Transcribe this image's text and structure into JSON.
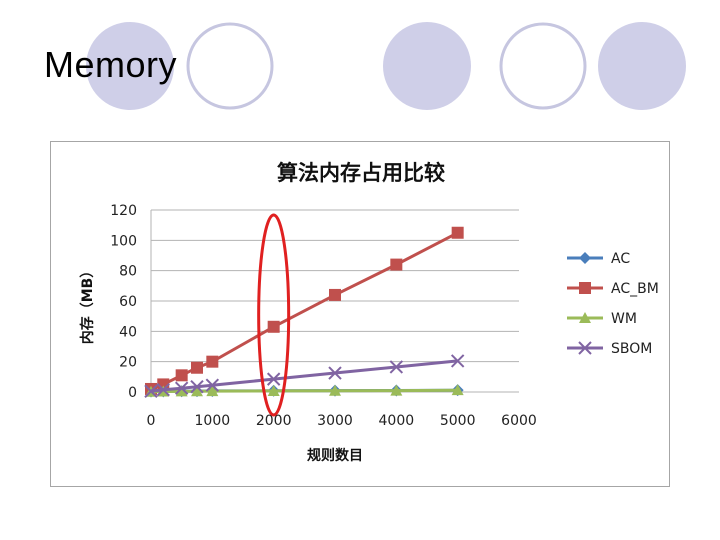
{
  "slide": {
    "title": "Memory"
  },
  "colors": {
    "deco_fill": "#cfcfe8",
    "deco_stroke": "#c6c6e0",
    "highlight": "#e02020",
    "gridline": "#b3b3b3"
  },
  "chart_data": {
    "type": "line",
    "title": "算法内存占用比较",
    "xlabel": "规则数目",
    "ylabel": "内存（MB）",
    "xlim": [
      0,
      6000
    ],
    "ylim": [
      0,
      120
    ],
    "xticks": [
      0,
      1000,
      2000,
      3000,
      4000,
      5000,
      6000
    ],
    "yticks": [
      0,
      20,
      40,
      60,
      80,
      100,
      120
    ],
    "grid": "horizontal",
    "legend": "right",
    "annotation": "red ellipse highlighting x = 2000",
    "series": [
      {
        "name": "AC",
        "color": "#4a7ebb",
        "marker": "diamond",
        "x": [
          0,
          200,
          500,
          750,
          1000,
          2000,
          3000,
          4000,
          5000
        ],
        "y": [
          0.3,
          0.4,
          0.5,
          0.6,
          0.7,
          0.8,
          0.9,
          1.0,
          1.2
        ]
      },
      {
        "name": "AC_BM",
        "color": "#c0504d",
        "marker": "square",
        "x": [
          0,
          200,
          500,
          750,
          1000,
          2000,
          3000,
          4000,
          5000
        ],
        "y": [
          2,
          5,
          11,
          16,
          20,
          43,
          64,
          84,
          105
        ]
      },
      {
        "name": "WM",
        "color": "#9bbb59",
        "marker": "triangle",
        "x": [
          0,
          200,
          500,
          750,
          1000,
          2000,
          3000,
          4000,
          5000
        ],
        "y": [
          0.2,
          0.3,
          0.4,
          0.5,
          0.6,
          0.7,
          0.8,
          0.9,
          1.2
        ]
      },
      {
        "name": "SBOM",
        "color": "#8064a2",
        "marker": "x",
        "x": [
          0,
          200,
          500,
          750,
          1000,
          2000,
          3000,
          4000,
          5000
        ],
        "y": [
          0.5,
          1.5,
          2.5,
          3.5,
          4.5,
          8.5,
          12.5,
          16.5,
          20.5
        ]
      }
    ]
  }
}
